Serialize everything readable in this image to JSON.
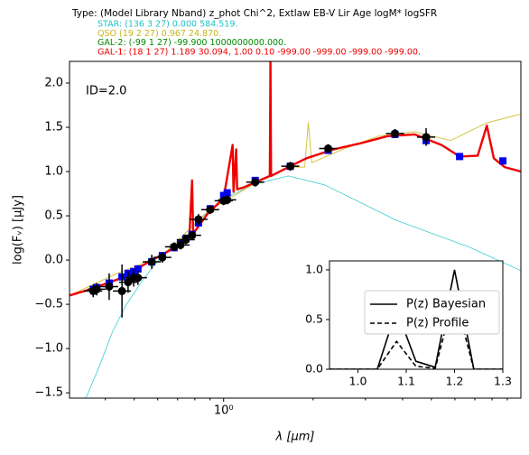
{
  "chart_data": [
    {
      "type": "sed",
      "title": "Type: (Model Library Nband) z_phot  Chi^2,  Extlaw  EB-V  Lir  Age  logM*  logSFR",
      "header_lines": [
        {
          "text": "STAR: (136 3 27)  0.000  584.519.",
          "color": "#1fc3c8"
        },
        {
          "text": "QSO  (19 2 27)  0.967  24.870.",
          "color": "#c8b418"
        },
        {
          "text": "GAL-2: (-99 1 27)  -99.900  1000000000.000.",
          "color": "#008800"
        },
        {
          "text": "GAL-1: (18 1 27)  1.189  30.094,  1.00   0.10   -999.00   -999.00   -999.00   -999.00.",
          "color": "#ee0000"
        }
      ],
      "annotation": "ID=2.0",
      "xlabel": "λ [µm]",
      "ylabel": "log(Fᵥ) [µJy]",
      "log_x": true,
      "xlim": [
        0.303,
        10
      ],
      "xticks": [
        {
          "value": 1,
          "label": "10⁰"
        }
      ],
      "xminor": [
        0.4,
        0.5,
        0.6,
        0.7,
        0.8,
        0.9,
        2,
        3,
        4,
        5,
        6,
        7,
        8,
        9
      ],
      "ylim": [
        -1.56,
        2.245
      ],
      "yticks": [
        {
          "value": -1.5,
          "label": "−1.5"
        },
        {
          "value": -1,
          "label": "−1.0"
        },
        {
          "value": -0.5,
          "label": "−0.5"
        },
        {
          "value": 0,
          "label": "0.0"
        },
        0.5,
        {
          "value": 1,
          "label": "1.0"
        },
        1.5,
        {
          "value": 2,
          "label": "2.0"
        }
      ],
      "series": [
        {
          "color": "#3ccfcf",
          "width": 0.8,
          "x": [
            0.344,
            0.382,
            0.424,
            0.471,
            0.541,
            0.622,
            0.716,
            0.823,
            1.014,
            1.25,
            1.652,
            2.185,
            2.888,
            3.81,
            5.04,
            6.67,
            10
          ],
          "values": [
            -1.56,
            -1.2,
            -0.8,
            -0.5,
            -0.2,
            0.05,
            0.25,
            0.45,
            0.7,
            0.85,
            0.95,
            0.85,
            0.65,
            0.45,
            0.3,
            0.15,
            -0.12
          ]
        },
        {
          "color": "#d4c440",
          "width": 1,
          "x": [
            0.303,
            0.439,
            0.622,
            0.882,
            1.25,
            1.652,
            1.875,
            1.927,
            1.98,
            2.51,
            3.32,
            4.39,
            5.8,
            7.68,
            10
          ],
          "values": [
            -0.4,
            -0.15,
            0.05,
            0.55,
            0.85,
            1.05,
            1.05,
            1.55,
            1.1,
            1.25,
            1.4,
            1.45,
            1.35,
            1.55,
            1.65
          ]
        },
        {
          "color": "#ee0000",
          "width": 2.4,
          "x": [
            0.303,
            0.356,
            0.439,
            0.541,
            0.667,
            0.767,
            0.783,
            0.79,
            0.882,
            1.0,
            1.072,
            1.08,
            1.102,
            1.11,
            1.166,
            1.43,
            1.437,
            1.444,
            1.652,
            1.9,
            2.343,
            2.888,
            3.56,
            4.39,
            5.41,
            6.22,
            7.16,
            7.68,
            8.11,
            8.82,
            10
          ],
          "values": [
            -0.4,
            -0.33,
            -0.22,
            -0.05,
            0.12,
            0.28,
            0.9,
            0.3,
            0.52,
            0.7,
            1.3,
            0.77,
            1.25,
            0.8,
            0.82,
            0.95,
            2.245,
            0.95,
            1.05,
            1.15,
            1.25,
            1.32,
            1.4,
            1.42,
            1.3,
            1.17,
            1.18,
            1.52,
            1.15,
            1.05,
            1.0
          ]
        },
        {
          "color": "#0000ee",
          "marker": "square",
          "x": [
            0.364,
            0.374,
            0.412,
            0.455,
            0.477,
            0.498,
            0.515,
            0.573,
            0.622,
            0.681,
            0.716,
            0.746,
            0.783,
            0.823,
            0.901,
            1.0,
            1.028,
            1.277,
            1.676,
            2.247,
            3.77,
            4.8,
            6.22,
            8.7
          ],
          "values": [
            -0.33,
            -0.31,
            -0.26,
            -0.19,
            -0.15,
            -0.13,
            -0.1,
            -0.02,
            0.05,
            0.14,
            0.19,
            0.24,
            0.29,
            0.42,
            0.58,
            0.73,
            0.76,
            0.9,
            1.06,
            1.24,
            1.42,
            1.35,
            1.17,
            1.12
          ]
        },
        {
          "color": "#000000",
          "marker": "circle",
          "x": [
            0.364,
            0.374,
            0.412,
            0.455,
            0.477,
            0.498,
            0.515,
            0.573,
            0.622,
            0.681,
            0.716,
            0.746,
            0.783,
            0.823,
            0.901,
            1.0,
            1.028,
            1.277,
            1.676,
            2.247,
            3.77,
            4.8
          ],
          "values": [
            -0.35,
            -0.33,
            -0.3,
            -0.35,
            -0.25,
            -0.2,
            -0.2,
            -0.02,
            0.03,
            0.15,
            0.17,
            0.23,
            0.28,
            0.46,
            0.57,
            0.67,
            0.68,
            0.88,
            1.06,
            1.26,
            1.43,
            1.39
          ],
          "yerr": [
            0.07,
            0.07,
            0.15,
            0.3,
            0.12,
            0.1,
            0.08,
            0.08,
            0.06,
            0.05,
            0.05,
            0.05,
            0.05,
            0.06,
            0.05,
            0.05,
            0.05,
            0.05,
            0.05,
            0.05,
            0.05,
            0.1
          ]
        }
      ]
    },
    {
      "type": "line",
      "xlim": [
        0.941,
        1.3
      ],
      "xticks": [
        {
          "value": 1,
          "label": "1.0"
        },
        1.1,
        1.2,
        1.3
      ],
      "ylim": [
        0,
        1.09
      ],
      "yticks": [
        {
          "value": 0,
          "label": "0.0"
        },
        0.5,
        {
          "value": 1,
          "label": "1.0"
        }
      ],
      "series": [
        {
          "name": "P(z) Bayesian",
          "color": "#000000",
          "dash": false,
          "x": [
            0.941,
            1.04,
            1.08,
            1.12,
            1.16,
            1.2,
            1.24,
            1.3
          ],
          "values": [
            0,
            0,
            0.6,
            0.08,
            0.02,
            1.0,
            0,
            0
          ]
        },
        {
          "name": "P(z) Profile",
          "color": "#000000",
          "dash": true,
          "x": [
            0.941,
            1.04,
            1.08,
            1.12,
            1.16,
            1.2,
            1.24,
            1.3
          ],
          "values": [
            0,
            0,
            0.28,
            0.03,
            0.01,
            0.75,
            0,
            0
          ]
        }
      ]
    }
  ]
}
